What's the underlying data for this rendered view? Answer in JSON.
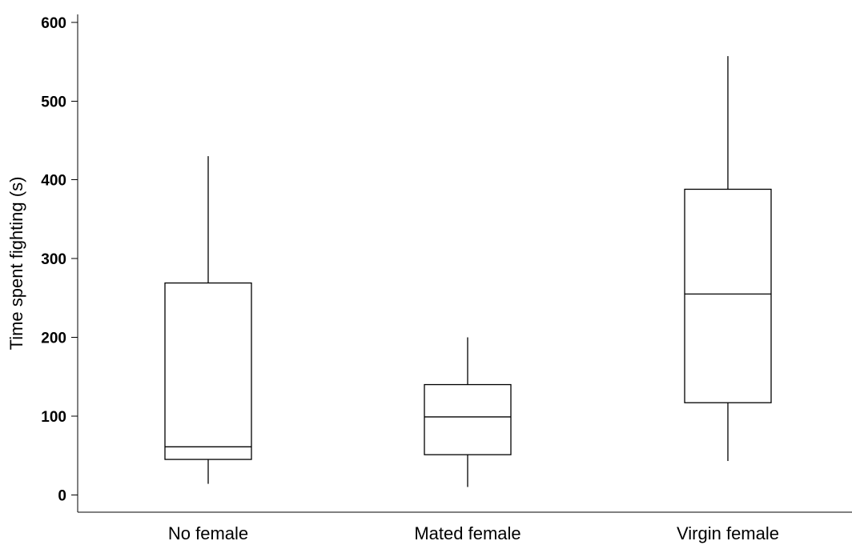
{
  "chart_data": {
    "type": "box",
    "title": "",
    "xlabel": "",
    "ylabel": "Time spent fighting (s)",
    "ylim": [
      -22,
      610
    ],
    "yticks": [
      0,
      100,
      200,
      300,
      400,
      500,
      600
    ],
    "grid": false,
    "legend": "none",
    "colors": {
      "stroke": "#000000",
      "fill": "#ffffff"
    },
    "categories": [
      "No female",
      "Mated female",
      "Virgin female"
    ],
    "boxes": [
      {
        "category": "No female",
        "whisker_low": 14,
        "q1": 45,
        "median": 61,
        "q3": 269,
        "whisker_high": 430
      },
      {
        "category": "Mated female",
        "whisker_low": 10,
        "q1": 51,
        "median": 99,
        "q3": 140,
        "whisker_high": 200
      },
      {
        "category": "Virgin female",
        "whisker_low": 43,
        "q1": 117,
        "median": 255,
        "q3": 388,
        "whisker_high": 557
      }
    ]
  }
}
